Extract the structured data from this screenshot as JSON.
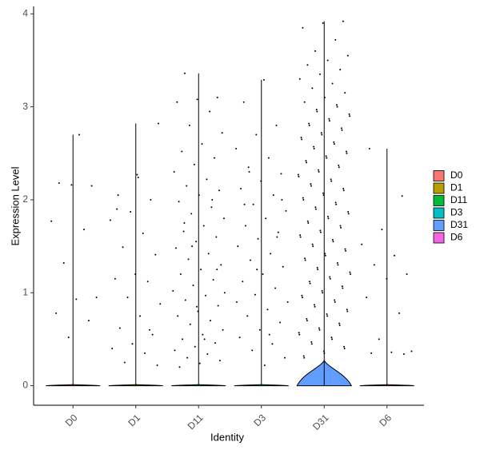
{
  "chart_data": {
    "type": "violin",
    "x_label": "Identity",
    "y_label": "Expression Level",
    "ylim": [
      -0.21,
      4.08
    ],
    "yticks": [
      0,
      1,
      2,
      3,
      4
    ],
    "series": [
      {
        "name": "D0",
        "color": "#F8766D",
        "max": 2.7,
        "points": [
          2.7,
          2.18,
          2.15,
          2.16,
          1.77,
          1.68,
          1.32,
          0.95,
          0.93,
          0.78,
          0.7,
          0.52
        ]
      },
      {
        "name": "D1",
        "color": "#B79F00",
        "max": 2.82,
        "points": [
          2.82,
          2.24,
          2.05,
          2.0,
          1.87,
          1.78,
          1.64,
          1.49,
          1.41,
          1.2,
          1.15,
          1.12,
          0.95,
          0.88,
          0.75,
          0.62,
          0.55,
          0.45,
          0.4,
          0.35,
          0.25,
          0.22,
          2.27,
          1.9,
          0.6
        ]
      },
      {
        "name": "D11",
        "color": "#00BA38",
        "max": 3.36,
        "points": [
          3.36,
          3.1,
          3.08,
          3.05,
          2.95,
          2.8,
          2.72,
          2.6,
          2.52,
          2.45,
          2.38,
          2.3,
          2.22,
          2.15,
          2.1,
          2.05,
          1.98,
          1.92,
          1.85,
          1.8,
          1.72,
          1.66,
          1.6,
          1.55,
          1.48,
          1.42,
          1.36,
          1.3,
          1.25,
          1.2,
          1.14,
          1.08,
          1.02,
          0.97,
          0.92,
          0.86,
          0.8,
          0.75,
          0.7,
          0.66,
          0.6,
          0.55,
          0.5,
          0.46,
          0.42,
          0.38,
          0.34,
          0.3,
          0.27,
          0.24,
          0.2,
          2.0,
          1.5,
          1.0,
          0.5,
          1.75,
          1.25,
          0.85
        ]
      },
      {
        "name": "D3",
        "color": "#00BFC4",
        "max": 3.29,
        "points": [
          3.29,
          3.05,
          2.8,
          2.7,
          2.55,
          2.45,
          2.35,
          2.28,
          2.2,
          2.12,
          2.05,
          1.95,
          1.88,
          1.8,
          1.72,
          1.65,
          1.58,
          1.5,
          1.42,
          1.35,
          1.28,
          1.2,
          1.12,
          1.05,
          0.98,
          0.9,
          0.82,
          0.75,
          0.68,
          0.6,
          0.52,
          0.45,
          0.38,
          0.3,
          0.22,
          1.95,
          1.6,
          1.25,
          0.9,
          0.55,
          2.3,
          2.0
        ]
      },
      {
        "name": "D31",
        "color": "#619CFF",
        "max": 3.92,
        "points": [
          3.92,
          3.9,
          3.85,
          3.72,
          3.6,
          3.55,
          3.5,
          3.45,
          3.4,
          3.35,
          3.3,
          3.25,
          3.2,
          3.15,
          3.1,
          3.05,
          3.0,
          2.95,
          2.9,
          2.85,
          2.8,
          2.75,
          2.7,
          2.65,
          2.6,
          2.55,
          2.5,
          2.45,
          2.4,
          2.35,
          2.3,
          2.25,
          2.2,
          2.15,
          2.1,
          2.05,
          2.0,
          1.95,
          1.9,
          1.85,
          1.8,
          1.75,
          1.7,
          1.65,
          1.6,
          1.55,
          1.5,
          1.45,
          1.4,
          1.35,
          1.3,
          1.25,
          1.2,
          1.15,
          1.1,
          1.05,
          1.0,
          0.95,
          0.9,
          0.85,
          0.8,
          0.75,
          0.7,
          0.65,
          0.6,
          0.55,
          0.5,
          0.45,
          0.4,
          0.35,
          0.3,
          3.02,
          2.97,
          2.92,
          2.87,
          2.82,
          2.77,
          2.72,
          2.67,
          2.62,
          2.57,
          2.52,
          2.47,
          2.42,
          2.37,
          2.32,
          2.27,
          2.22,
          2.17,
          2.12,
          2.07,
          2.02,
          1.97,
          1.92,
          1.87,
          1.82,
          1.77,
          1.72,
          1.67,
          1.62,
          1.57,
          1.52,
          1.47,
          1.42,
          1.37,
          1.32,
          1.27,
          1.22,
          1.17,
          1.12,
          1.07,
          1.02,
          0.97,
          0.92,
          0.87,
          0.82,
          0.77,
          0.72,
          0.67,
          0.62,
          0.57,
          0.52,
          0.47,
          0.42,
          0.37,
          0.32
        ]
      },
      {
        "name": "D6",
        "color": "#F564E3",
        "max": 2.55,
        "points": [
          2.55,
          2.04,
          1.68,
          1.52,
          1.4,
          1.3,
          1.2,
          1.15,
          0.95,
          0.78,
          0.5,
          0.37,
          0.36,
          0.35,
          0.34
        ]
      }
    ]
  }
}
